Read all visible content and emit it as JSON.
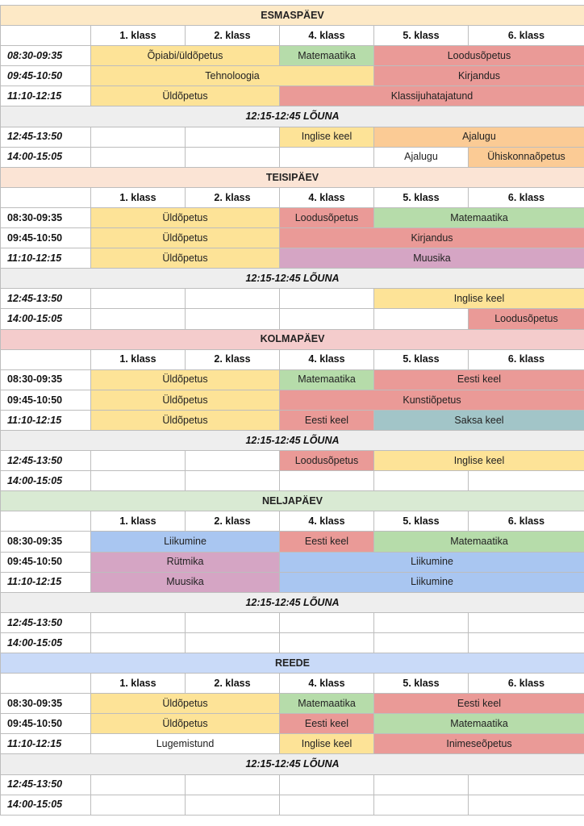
{
  "class_headers": [
    "1. klass",
    "2. klass",
    "4. klass",
    "5. klass",
    "6. klass"
  ],
  "colors": {
    "yellow": "#fde397",
    "green": "#b6dcaa",
    "red": "#ea9a97",
    "orange": "#fbcb95",
    "purple": "#d5a5c4",
    "blue": "#a9c6f1",
    "teal": "#a2c5c8",
    "day_esmaspaev": "#fde9c6",
    "day_teisipaev": "#fbe4d5",
    "day_kolmapaev": "#f4cccc",
    "day_neljapaev": "#d9ead3",
    "day_reede": "#c9daf8",
    "lunch": "#eeeeee"
  },
  "days": [
    {
      "name": "ESMASPÄEV",
      "color": "#fde9c6",
      "morning": [
        {
          "time": "08:30-09:35",
          "italic": true,
          "cells": [
            {
              "text": "Õpiabi/üldõpetus",
              "span": 2,
              "color": "#fde397"
            },
            {
              "text": "Matemaatika",
              "span": 1,
              "color": "#b6dcaa"
            },
            {
              "text": "Loodusõpetus",
              "span": 2,
              "color": "#ea9a97"
            }
          ]
        },
        {
          "time": "09:45-10:50",
          "italic": true,
          "cells": [
            {
              "text": "Tehnoloogia",
              "span": 3,
              "color": "#fde397"
            },
            {
              "text": "Kirjandus",
              "span": 2,
              "color": "#ea9a97"
            }
          ]
        },
        {
          "time": "11:10-12:15",
          "italic": true,
          "cells": [
            {
              "text": "Üldõpetus",
              "span": 2,
              "color": "#fde397"
            },
            {
              "text": "Klassijuhatajatund",
              "span": 3,
              "color": "#ea9a97"
            }
          ]
        }
      ],
      "lunch": "12:15-12:45 LÕUNA",
      "afternoon": [
        {
          "time": "12:45-13:50",
          "italic": true,
          "cells": [
            {
              "text": "",
              "span": 1,
              "color": ""
            },
            {
              "text": "",
              "span": 1,
              "color": ""
            },
            {
              "text": "Inglise keel",
              "span": 1,
              "color": "#fde397"
            },
            {
              "text": "Ajalugu",
              "span": 2,
              "color": "#fbcb95"
            }
          ]
        },
        {
          "time": "14:00-15:05",
          "italic": true,
          "cells": [
            {
              "text": "",
              "span": 1,
              "color": ""
            },
            {
              "text": "",
              "span": 1,
              "color": ""
            },
            {
              "text": "",
              "span": 1,
              "color": ""
            },
            {
              "text": "Ajalugu",
              "span": 1,
              "color": ""
            },
            {
              "text": "Ühiskonnaõpetus",
              "span": 1,
              "color": "#fbcb95"
            }
          ]
        }
      ]
    },
    {
      "name": "TEISIPÄEV",
      "color": "#fbe4d5",
      "morning": [
        {
          "time": "08:30-09:35",
          "italic": false,
          "cells": [
            {
              "text": "Üldõpetus",
              "span": 2,
              "color": "#fde397"
            },
            {
              "text": "Loodusõpetus",
              "span": 1,
              "color": "#ea9a97"
            },
            {
              "text": "Matemaatika",
              "span": 2,
              "color": "#b6dcaa"
            }
          ]
        },
        {
          "time": "09:45-10:50",
          "italic": false,
          "cells": [
            {
              "text": "Üldõpetus",
              "span": 2,
              "color": "#fde397"
            },
            {
              "text": "Kirjandus",
              "span": 3,
              "color": "#ea9a97"
            }
          ]
        },
        {
          "time": "11:10-12:15",
          "italic": true,
          "cells": [
            {
              "text": "Üldõpetus",
              "span": 2,
              "color": "#fde397"
            },
            {
              "text": "Muusika",
              "span": 3,
              "color": "#d5a5c4"
            }
          ]
        }
      ],
      "lunch": "12:15-12:45 LÕUNA",
      "afternoon": [
        {
          "time": "12:45-13:50",
          "italic": true,
          "cells": [
            {
              "text": "",
              "span": 1,
              "color": ""
            },
            {
              "text": "",
              "span": 1,
              "color": ""
            },
            {
              "text": "",
              "span": 1,
              "color": ""
            },
            {
              "text": "Inglise keel",
              "span": 2,
              "color": "#fde397"
            }
          ]
        },
        {
          "time": "14:00-15:05",
          "italic": true,
          "cells": [
            {
              "text": "",
              "span": 1,
              "color": ""
            },
            {
              "text": "",
              "span": 1,
              "color": ""
            },
            {
              "text": "",
              "span": 1,
              "color": ""
            },
            {
              "text": "",
              "span": 1,
              "color": ""
            },
            {
              "text": "Loodusõpetus",
              "span": 1,
              "color": "#ea9a97"
            }
          ]
        }
      ]
    },
    {
      "name": "KOLMAPÄEV",
      "color": "#f4cccc",
      "morning": [
        {
          "time": "08:30-09:35",
          "italic": false,
          "cells": [
            {
              "text": "Üldõpetus",
              "span": 2,
              "color": "#fde397"
            },
            {
              "text": "Matemaatika",
              "span": 1,
              "color": "#b6dcaa"
            },
            {
              "text": "Eesti keel",
              "span": 2,
              "color": "#ea9a97"
            }
          ]
        },
        {
          "time": "09:45-10:50",
          "italic": false,
          "cells": [
            {
              "text": "Üldõpetus",
              "span": 2,
              "color": "#fde397"
            },
            {
              "text": "Kunstiõpetus",
              "span": 3,
              "color": "#ea9a97"
            }
          ]
        },
        {
          "time": "11:10-12:15",
          "italic": true,
          "cells": [
            {
              "text": "Üldõpetus",
              "span": 2,
              "color": "#fde397"
            },
            {
              "text": "Eesti keel",
              "span": 1,
              "color": "#ea9a97"
            },
            {
              "text": "Saksa keel",
              "span": 2,
              "color": "#a2c5c8"
            }
          ]
        }
      ],
      "lunch": "12:15-12:45 LÕUNA",
      "afternoon": [
        {
          "time": "12:45-13:50",
          "italic": true,
          "cells": [
            {
              "text": "",
              "span": 1,
              "color": ""
            },
            {
              "text": "",
              "span": 1,
              "color": ""
            },
            {
              "text": "Loodusõpetus",
              "span": 1,
              "color": "#ea9a97"
            },
            {
              "text": "Inglise keel",
              "span": 2,
              "color": "#fde397"
            }
          ]
        },
        {
          "time": "14:00-15:05",
          "italic": true,
          "cells": [
            {
              "text": "",
              "span": 1,
              "color": ""
            },
            {
              "text": "",
              "span": 1,
              "color": ""
            },
            {
              "text": "",
              "span": 1,
              "color": ""
            },
            {
              "text": "",
              "span": 1,
              "color": ""
            },
            {
              "text": "",
              "span": 1,
              "color": ""
            }
          ]
        }
      ]
    },
    {
      "name": "NELJAPÄEV",
      "color": "#d9ead3",
      "morning": [
        {
          "time": "08:30-09:35",
          "italic": false,
          "cells": [
            {
              "text": "Liikumine",
              "span": 2,
              "color": "#a9c6f1"
            },
            {
              "text": "Eesti keel",
              "span": 1,
              "color": "#ea9a97"
            },
            {
              "text": "Matemaatika",
              "span": 2,
              "color": "#b6dcaa"
            }
          ]
        },
        {
          "time": "09:45-10:50",
          "italic": false,
          "cells": [
            {
              "text": "Rütmika",
              "span": 2,
              "color": "#d5a5c4"
            },
            {
              "text": "Liikumine",
              "span": 3,
              "color": "#a9c6f1"
            }
          ]
        },
        {
          "time": "11:10-12:15",
          "italic": true,
          "cells": [
            {
              "text": "Muusika",
              "span": 2,
              "color": "#d5a5c4"
            },
            {
              "text": "Liikumine",
              "span": 3,
              "color": "#a9c6f1"
            }
          ]
        }
      ],
      "lunch": "12:15-12:45 LÕUNA",
      "afternoon": [
        {
          "time": "12:45-13:50",
          "italic": true,
          "cells": [
            {
              "text": "",
              "span": 1,
              "color": ""
            },
            {
              "text": "",
              "span": 1,
              "color": ""
            },
            {
              "text": "",
              "span": 1,
              "color": ""
            },
            {
              "text": "",
              "span": 1,
              "color": ""
            },
            {
              "text": "",
              "span": 1,
              "color": ""
            }
          ]
        },
        {
          "time": "14:00-15:05",
          "italic": true,
          "cells": [
            {
              "text": "",
              "span": 1,
              "color": ""
            },
            {
              "text": "",
              "span": 1,
              "color": ""
            },
            {
              "text": "",
              "span": 1,
              "color": ""
            },
            {
              "text": "",
              "span": 1,
              "color": ""
            },
            {
              "text": "",
              "span": 1,
              "color": ""
            }
          ]
        }
      ]
    },
    {
      "name": "REEDE",
      "color": "#c9daf8",
      "morning": [
        {
          "time": "08:30-09:35",
          "italic": false,
          "cells": [
            {
              "text": "Üldõpetus",
              "span": 2,
              "color": "#fde397"
            },
            {
              "text": "Matemaatika",
              "span": 1,
              "color": "#b6dcaa"
            },
            {
              "text": "Eesti keel",
              "span": 2,
              "color": "#ea9a97"
            }
          ]
        },
        {
          "time": "09:45-10:50",
          "italic": false,
          "cells": [
            {
              "text": "Üldõpetus",
              "span": 2,
              "color": "#fde397"
            },
            {
              "text": "Eesti keel",
              "span": 1,
              "color": "#ea9a97"
            },
            {
              "text": "Matemaatika",
              "span": 2,
              "color": "#b6dcaa"
            }
          ]
        },
        {
          "time": "11:10-12:15",
          "italic": true,
          "cells": [
            {
              "text": "Lugemistund",
              "span": 2,
              "color": ""
            },
            {
              "text": "Inglise keel",
              "span": 1,
              "color": "#fde397"
            },
            {
              "text": "Inimeseõpetus",
              "span": 2,
              "color": "#ea9a97"
            }
          ]
        }
      ],
      "lunch": "12:15-12:45 LÕUNA",
      "afternoon": [
        {
          "time": "12:45-13:50",
          "italic": true,
          "cells": [
            {
              "text": "",
              "span": 1,
              "color": ""
            },
            {
              "text": "",
              "span": 1,
              "color": ""
            },
            {
              "text": "",
              "span": 1,
              "color": ""
            },
            {
              "text": "",
              "span": 1,
              "color": ""
            },
            {
              "text": "",
              "span": 1,
              "color": ""
            }
          ]
        },
        {
          "time": "14:00-15:05",
          "italic": true,
          "cells": [
            {
              "text": "",
              "span": 1,
              "color": ""
            },
            {
              "text": "",
              "span": 1,
              "color": ""
            },
            {
              "text": "",
              "span": 1,
              "color": ""
            },
            {
              "text": "",
              "span": 1,
              "color": ""
            },
            {
              "text": "",
              "span": 1,
              "color": ""
            }
          ]
        }
      ]
    }
  ]
}
